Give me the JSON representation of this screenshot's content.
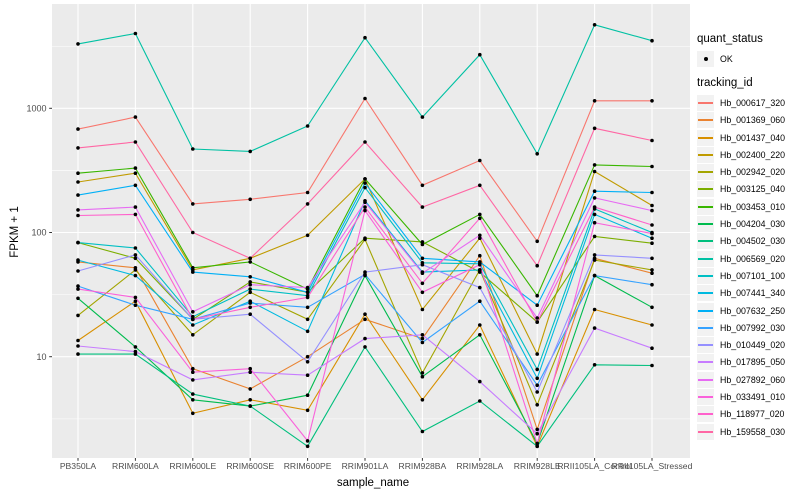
{
  "axes": {
    "y_title": "FPKM + 1",
    "x_title": "sample_name",
    "y_tick_labels": [
      "10",
      "100",
      "1000"
    ]
  },
  "legend": {
    "quant_status_title": "quant_status",
    "quant_status_value": "OK",
    "tracking_id_title": "tracking_id"
  },
  "colors": {
    "panel_bg": "#EBEBEB",
    "gridline": "#FFFFFF",
    "tick_text": "#4D4D4D",
    "tick_mark": "#333333",
    "point": "#000000",
    "legend_key_bg": "#F2F2F2"
  },
  "chart_data": {
    "type": "line",
    "title": "",
    "xlabel": "sample_name",
    "ylabel": "FPKM + 1",
    "y_scale": "log10",
    "ylim": [
      1.8,
      6900
    ],
    "y_major_ticks": [
      10,
      100,
      1000
    ],
    "y_minor_ticks": [
      3.16,
      31.6,
      316,
      3160
    ],
    "grid": true,
    "legend_position": "right",
    "marker": {
      "shape": "dot",
      "color": "#000000",
      "status_label": "OK"
    },
    "categories": [
      "PB350LA",
      "RRIM600LA",
      "RRIM600LE",
      "RRIM600SE",
      "RRIM600PE",
      "RRIM901LA",
      "RRIM928BA",
      "RRIM928LA",
      "RRIM928LE",
      "RRII105LA_Control",
      "RRII105LA_Stressed"
    ],
    "series": [
      {
        "name": "Hb_000617_320",
        "color": "#F8766D",
        "values": [
          680,
          850,
          170,
          185,
          210,
          1200,
          240,
          380,
          85,
          1150,
          1150
        ]
      },
      {
        "name": "Hb_001369_060",
        "color": "#EA8331",
        "values": [
          58,
          52,
          8,
          5.5,
          10,
          20,
          14,
          65,
          2.6,
          62,
          47
        ]
      },
      {
        "name": "Hb_001437_040",
        "color": "#D89000",
        "values": [
          13.5,
          28,
          3.5,
          4.5,
          3.7,
          22,
          4.5,
          18,
          1.9,
          24,
          18
        ]
      },
      {
        "name": "Hb_002400_220",
        "color": "#C09B00",
        "values": [
          255,
          300,
          50,
          62,
          95,
          270,
          24,
          90,
          10.5,
          310,
          165
        ]
      },
      {
        "name": "Hb_002942_020",
        "color": "#A3A500",
        "values": [
          21.5,
          50,
          15,
          33,
          20,
          88,
          7.4,
          50,
          4.1,
          60,
          50
        ]
      },
      {
        "name": "Hb_003125_040",
        "color": "#7CAE00",
        "values": [
          83,
          62,
          20,
          40,
          33,
          90,
          84,
          48,
          19,
          93,
          82
        ]
      },
      {
        "name": "Hb_003453_010",
        "color": "#39B600",
        "values": [
          300,
          330,
          52,
          58,
          35,
          270,
          80,
          140,
          31,
          350,
          340
        ]
      },
      {
        "name": "Hb_004204_030",
        "color": "#00BB4E",
        "values": [
          29.5,
          12,
          4.5,
          4,
          4.9,
          45,
          6.9,
          15,
          2,
          45,
          25
        ]
      },
      {
        "name": "Hb_004502_030",
        "color": "#00BF7D",
        "values": [
          10.5,
          10.5,
          5,
          4,
          1.9,
          12,
          2.5,
          4.4,
          1.9,
          8.6,
          8.5
        ]
      },
      {
        "name": "Hb_006569_020",
        "color": "#00C1A3",
        "values": [
          3300,
          4000,
          470,
          450,
          720,
          3700,
          850,
          2700,
          430,
          4700,
          3500
        ]
      },
      {
        "name": "Hb_007101_100",
        "color": "#00BFC4",
        "values": [
          83,
          75,
          21,
          35,
          31,
          230,
          57,
          56,
          7.9,
          155,
          100
        ]
      },
      {
        "name": "Hb_007441_340",
        "color": "#00BAE0",
        "values": [
          60,
          45,
          18,
          28,
          16,
          180,
          48,
          50,
          6.7,
          140,
          90
        ]
      },
      {
        "name": "Hb_007632_250",
        "color": "#00B0F6",
        "values": [
          200,
          240,
          48,
          44,
          33,
          250,
          62,
          58,
          26,
          215,
          210
        ]
      },
      {
        "name": "Hb_007992_030",
        "color": "#35A2FF",
        "values": [
          37,
          26,
          20,
          27,
          25,
          46,
          13,
          28,
          5.9,
          45,
          38
        ]
      },
      {
        "name": "Hb_010449_020",
        "color": "#9590FF",
        "values": [
          49,
          66,
          20,
          22,
          9.1,
          48,
          55,
          36,
          5.2,
          66,
          62
        ]
      },
      {
        "name": "Hb_017895_050",
        "color": "#C77CFF",
        "values": [
          12.2,
          11,
          6.5,
          7.5,
          7.1,
          14,
          15,
          6.3,
          2.4,
          17,
          11.7
        ]
      },
      {
        "name": "Hb_027892_060",
        "color": "#E76BF3",
        "values": [
          152,
          160,
          23,
          38,
          36,
          175,
          47,
          95,
          20.5,
          190,
          150
        ]
      },
      {
        "name": "Hb_033491_010",
        "color": "#FA62DB",
        "values": [
          35,
          30,
          7.5,
          8,
          2.1,
          150,
          33,
          55,
          2,
          120,
          98
        ]
      },
      {
        "name": "Hb_118977_020",
        "color": "#FF61CC",
        "values": [
          137,
          140,
          20,
          25,
          30,
          160,
          39,
          130,
          19,
          160,
          115
        ]
      },
      {
        "name": "Hb_159558_030",
        "color": "#FF67A4",
        "values": [
          480,
          535,
          100,
          62,
          170,
          535,
          160,
          240,
          54,
          690,
          550
        ]
      }
    ]
  }
}
